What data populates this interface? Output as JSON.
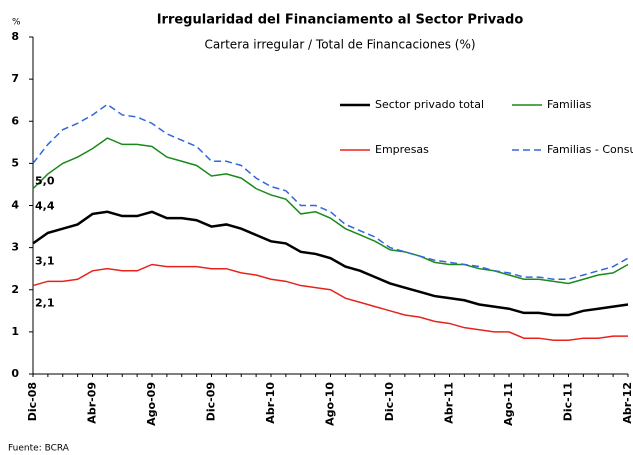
{
  "chart_data": {
    "type": "line",
    "title": "Irregularidad del Financiamento al Sector Privado",
    "subtitle": "Cartera irregular / Total de Financaciones (%)",
    "y_unit": "%",
    "source": "Fuente: BCRA",
    "categories": [
      "Dic-08",
      null,
      null,
      null,
      "Abr-09",
      null,
      null,
      null,
      "Ago-09",
      null,
      null,
      null,
      "Dic-09",
      null,
      null,
      null,
      "Abr-10",
      null,
      null,
      null,
      "Ago-10",
      null,
      null,
      null,
      "Dic-10",
      null,
      null,
      null,
      "Abr-11",
      null,
      null,
      null,
      "Ago-11",
      null,
      null,
      null,
      "Dic-11",
      null,
      null,
      null,
      "Abr-12"
    ],
    "ylim": [
      0,
      8
    ],
    "yticks": [
      0,
      1,
      2,
      3,
      4,
      5,
      6,
      7,
      8
    ],
    "series": [
      {
        "name": "Sector privado total",
        "color": "#000000",
        "dashed": false,
        "values": [
          3.1,
          3.35,
          3.45,
          3.55,
          3.8,
          3.85,
          3.75,
          3.75,
          3.85,
          3.7,
          3.7,
          3.65,
          3.5,
          3.55,
          3.45,
          3.3,
          3.15,
          3.1,
          2.9,
          2.85,
          2.75,
          2.55,
          2.45,
          2.3,
          2.15,
          2.05,
          1.95,
          1.85,
          1.8,
          1.75,
          1.65,
          1.6,
          1.55,
          1.45,
          1.45,
          1.4,
          1.4,
          1.5,
          1.55,
          1.6,
          1.65
        ],
        "value_labels": [
          "3,1"
        ]
      },
      {
        "name": "Familias",
        "color": "#1a8a1a",
        "dashed": false,
        "values": [
          4.4,
          4.75,
          5.0,
          5.15,
          5.35,
          5.6,
          5.45,
          5.45,
          5.4,
          5.15,
          5.05,
          4.95,
          4.7,
          4.75,
          4.65,
          4.4,
          4.25,
          4.15,
          3.8,
          3.85,
          3.7,
          3.45,
          3.3,
          3.15,
          2.95,
          2.9,
          2.8,
          2.65,
          2.6,
          2.6,
          2.5,
          2.45,
          2.35,
          2.25,
          2.25,
          2.2,
          2.15,
          2.25,
          2.35,
          2.4,
          2.6
        ],
        "value_labels": [
          "4,4"
        ]
      },
      {
        "name": "Empresas",
        "color": "#e8231c",
        "dashed": false,
        "values": [
          2.1,
          2.2,
          2.2,
          2.25,
          2.45,
          2.5,
          2.45,
          2.45,
          2.6,
          2.55,
          2.55,
          2.55,
          2.5,
          2.5,
          2.4,
          2.35,
          2.25,
          2.2,
          2.1,
          2.05,
          2.0,
          1.8,
          1.7,
          1.6,
          1.5,
          1.4,
          1.35,
          1.25,
          1.2,
          1.1,
          1.05,
          1.0,
          1.0,
          0.85,
          0.85,
          0.8,
          0.8,
          0.85,
          0.85,
          0.9,
          0.9
        ],
        "value_labels": [
          "2,1"
        ]
      },
      {
        "name": "Familias - Consumo",
        "color": "#3366dd",
        "dashed": true,
        "values": [
          5.0,
          5.45,
          5.8,
          5.95,
          6.15,
          6.4,
          6.15,
          6.1,
          5.95,
          5.7,
          5.55,
          5.4,
          5.05,
          5.05,
          4.95,
          4.65,
          4.45,
          4.35,
          4.0,
          4.0,
          3.85,
          3.55,
          3.4,
          3.25,
          3.0,
          2.9,
          2.8,
          2.7,
          2.65,
          2.6,
          2.55,
          2.45,
          2.4,
          2.3,
          2.3,
          2.25,
          2.25,
          2.35,
          2.45,
          2.55,
          2.75
        ],
        "value_labels": [
          "5,0"
        ]
      }
    ]
  }
}
